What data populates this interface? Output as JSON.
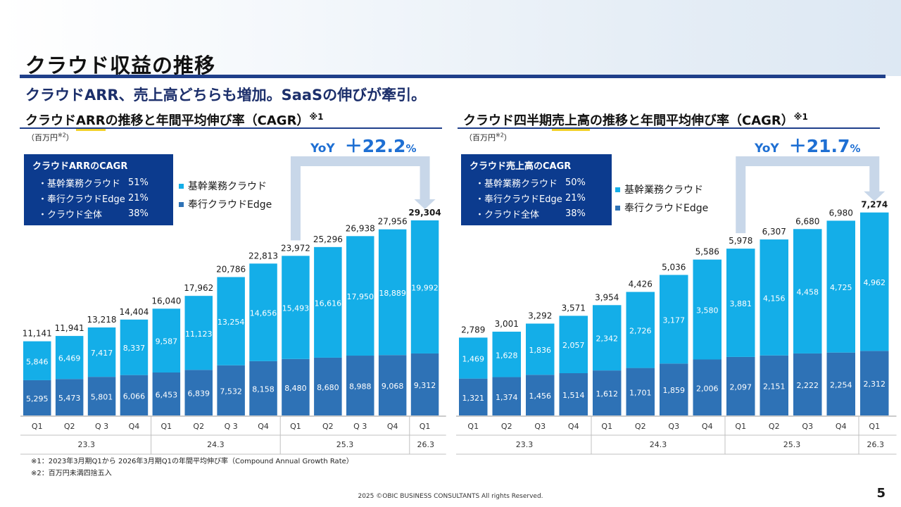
{
  "page": {
    "title": "クラウド収益の推移",
    "subtitle": "クラウドARR、売上高どちらも増加。SaaSの伸びが牽引。",
    "footnotes": [
      "※1：2023年3月期Q1から 2026年3月期Q1の年間平均伸び率（Compound Annual Growth Rate）",
      "※2：百万円未満四捨五入"
    ],
    "copyright": "2025 ©OBIC BUSINESS CONSULTANTS All rights Reserved.",
    "page_number": "5"
  },
  "colors": {
    "kikan": "#14aee8",
    "bugyo": "#2e72b6",
    "navy": "#0c3b8e",
    "yoy": "#1e6fd3"
  },
  "left": {
    "title_pre": "クラウド",
    "title_ul": "ARR",
    "title_post": "の推移と年間平均伸び率（CAGR）",
    "title_sup": "※1",
    "unit": "（百万円",
    "unit_sup": "※2",
    "unit_close": "）",
    "cagr_title": "クラウドARRのCAGR",
    "cagr_rows": [
      {
        "label": "・基幹業務クラウド",
        "value": "51%"
      },
      {
        "label": "・奉行クラウドEdge",
        "value": "21%"
      },
      {
        "label": "・クラウド全体",
        "value": "38%"
      }
    ],
    "legend": [
      "基幹業務クラウド",
      "奉行クラウドEdge"
    ],
    "yoy_label": "YoY",
    "yoy_value": "＋22.2",
    "yoy_pct": "%"
  },
  "right": {
    "title_pre": "クラウド四半期",
    "title_ul": "売上高",
    "title_post": "の推移と年間平均伸び率（CAGR）",
    "title_sup": "※1",
    "unit": "（百万円",
    "unit_sup": "※2",
    "unit_close": "）",
    "cagr_title": "クラウド売上高のCAGR",
    "cagr_rows": [
      {
        "label": "・基幹業務クラウド",
        "value": "50%"
      },
      {
        "label": "・奉行クラウドEdge",
        "value": "21%"
      },
      {
        "label": "・クラウド全体",
        "value": "38%"
      }
    ],
    "legend": [
      "基幹業務クラウド",
      "奉行クラウドEdge"
    ],
    "yoy_label": "YoY",
    "yoy_value": "＋21.7",
    "yoy_pct": "%"
  },
  "chart_data": [
    {
      "type": "bar",
      "stacked": true,
      "categories": [
        "Q1",
        "Q2",
        "Q 3",
        "Q4",
        "Q1",
        "Q2",
        "Q 3",
        "Q4",
        "Q1",
        "Q2",
        "Q 3",
        "Q4",
        "Q1"
      ],
      "year_groups": [
        {
          "label": "23.3",
          "count": 4
        },
        {
          "label": "24.3",
          "count": 4
        },
        {
          "label": "25.3",
          "count": 4
        },
        {
          "label": "26.3",
          "count": 1
        }
      ],
      "series": [
        {
          "name": "奉行クラウドEdge",
          "values": [
            5295,
            5473,
            5801,
            6066,
            6453,
            6839,
            7532,
            8158,
            8480,
            8680,
            8988,
            9068,
            9312
          ]
        },
        {
          "name": "基幹業務クラウド",
          "values": [
            5846,
            6469,
            7417,
            8337,
            9587,
            11123,
            13254,
            14656,
            15493,
            16616,
            17950,
            18889,
            19992
          ]
        }
      ],
      "totals": [
        "11,141",
        "11,941",
        "13,218",
        "14,404",
        "16,040",
        "17,962",
        "20,786",
        "22,813",
        "23,972",
        "25,296",
        "26,938",
        "27,956",
        "29,304"
      ],
      "bugyo_labels": [
        "5,295",
        "5,473",
        "5,801",
        "6,066",
        "6,453",
        "6,839",
        "7,532",
        "8,158",
        "8,480",
        "8,680",
        "8,988",
        "9,068",
        "9,312"
      ],
      "kikan_labels": [
        "5,846",
        "6,469",
        "7,417",
        "8,337",
        "9,587",
        "11,123",
        "13,254",
        "14,656",
        "15,493",
        "16,616",
        "17,950",
        "18,889",
        "19,992"
      ],
      "ylim": [
        0,
        33000
      ],
      "yoy_from_index": 8,
      "yoy_to_index": 12
    },
    {
      "type": "bar",
      "stacked": true,
      "categories": [
        "Q1",
        "Q2",
        "Q3",
        "Q4",
        "Q1",
        "Q2",
        "Q3",
        "Q4",
        "Q1",
        "Q2",
        "Q3",
        "Q4",
        "Q1"
      ],
      "year_groups": [
        {
          "label": "23.3",
          "count": 4
        },
        {
          "label": "24.3",
          "count": 4
        },
        {
          "label": "25.3",
          "count": 4
        },
        {
          "label": "26.3",
          "count": 1
        }
      ],
      "series": [
        {
          "name": "奉行クラウドEdge",
          "values": [
            1321,
            1374,
            1456,
            1514,
            1612,
            1701,
            1859,
            2006,
            2097,
            2151,
            2222,
            2254,
            2312
          ]
        },
        {
          "name": "基幹業務クラウド",
          "values": [
            1469,
            1628,
            1836,
            2057,
            2342,
            2726,
            3177,
            3580,
            3881,
            4156,
            4458,
            4725,
            4962
          ]
        }
      ],
      "totals": [
        "2,789",
        "3,001",
        "3,292",
        "3,571",
        "3,954",
        "4,426",
        "5,036",
        "5,586",
        "5,978",
        "6,307",
        "6,680",
        "6,980",
        "7,274"
      ],
      "bugyo_labels": [
        "1,321",
        "1,374",
        "1,456",
        "1,514",
        "1,612",
        "1,701",
        "1,859",
        "2,006",
        "2,097",
        "2,151",
        "2,222",
        "2,254",
        "2,312"
      ],
      "kikan_labels": [
        "1,469",
        "1,628",
        "1,836",
        "2,057",
        "2,342",
        "2,726",
        "3,177",
        "3,580",
        "3,881",
        "4,156",
        "4,458",
        "4,725",
        "4,962"
      ],
      "ylim": [
        0,
        8100
      ],
      "yoy_from_index": 8,
      "yoy_to_index": 12
    }
  ]
}
